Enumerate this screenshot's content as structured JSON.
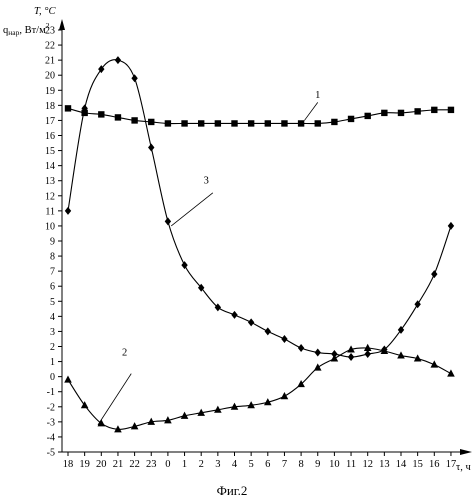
{
  "chart_data": {
    "type": "line",
    "ylabel_temperature": "T, °C",
    "ylabel_flux_main": "q",
    "ylabel_flux_sub": "нар",
    "ylabel_flux_unit": ", Вт/м",
    "ylabel_flux_sup": "2",
    "xlabel": "τ, ч",
    "caption": "Фиг.2",
    "ylim": [
      -5,
      23
    ],
    "y_ticks": [
      "-5",
      "-4",
      "-3",
      "-2",
      "-1",
      "0",
      "1",
      "2",
      "3",
      "4",
      "5",
      "6",
      "7",
      "8",
      "9",
      "10",
      "11",
      "12",
      "13",
      "14",
      "15",
      "16",
      "17",
      "18",
      "19",
      "20",
      "21",
      "22",
      "23"
    ],
    "x_ticks": [
      "18",
      "19",
      "20",
      "21",
      "22",
      "23",
      "0",
      "1",
      "2",
      "3",
      "4",
      "5",
      "6",
      "7",
      "8",
      "9",
      "10",
      "11",
      "12",
      "13",
      "14",
      "15",
      "16",
      "17"
    ],
    "grid": false,
    "series": [
      {
        "name": "1",
        "marker": "square",
        "points": [
          [
            0.0,
            17.8
          ],
          [
            1.0,
            17.5
          ],
          [
            2.0,
            17.4
          ],
          [
            3.0,
            17.2
          ],
          [
            4.0,
            17.0
          ],
          [
            5.0,
            16.9
          ],
          [
            6.0,
            16.8
          ],
          [
            7.0,
            16.8
          ],
          [
            8.0,
            16.8
          ],
          [
            9.0,
            16.8
          ],
          [
            10.0,
            16.8
          ],
          [
            11.0,
            16.8
          ],
          [
            12.0,
            16.8
          ],
          [
            13.0,
            16.8
          ],
          [
            14.0,
            16.8
          ],
          [
            15.0,
            16.8
          ],
          [
            16.0,
            16.9
          ],
          [
            17.0,
            17.1
          ],
          [
            18.0,
            17.3
          ],
          [
            19.0,
            17.5
          ],
          [
            20.0,
            17.5
          ],
          [
            21.0,
            17.6
          ],
          [
            22.0,
            17.7
          ],
          [
            23.0,
            17.7
          ]
        ]
      },
      {
        "name": "2",
        "marker": "triangle",
        "points": [
          [
            0.0,
            -0.2
          ],
          [
            1.0,
            -1.9
          ],
          [
            2.0,
            -3.1
          ],
          [
            3.0,
            -3.5
          ],
          [
            4.0,
            -3.3
          ],
          [
            5.0,
            -3.0
          ],
          [
            6.0,
            -2.9
          ],
          [
            7.0,
            -2.6
          ],
          [
            8.0,
            -2.4
          ],
          [
            9.0,
            -2.2
          ],
          [
            10.0,
            -2.0
          ],
          [
            11.0,
            -1.9
          ],
          [
            12.0,
            -1.7
          ],
          [
            13.0,
            -1.3
          ],
          [
            14.0,
            -0.5
          ],
          [
            15.0,
            0.6
          ],
          [
            16.0,
            1.2
          ],
          [
            17.0,
            1.8
          ],
          [
            18.0,
            1.9
          ],
          [
            19.0,
            1.7
          ],
          [
            20.0,
            1.4
          ],
          [
            21.0,
            1.2
          ],
          [
            22.0,
            0.8
          ],
          [
            23.0,
            0.2
          ]
        ]
      },
      {
        "name": "3",
        "marker": "diamond",
        "points": [
          [
            0.0,
            11.0
          ],
          [
            1.0,
            17.8
          ],
          [
            2.0,
            20.4
          ],
          [
            3.0,
            21.0
          ],
          [
            4.0,
            19.8
          ],
          [
            5.0,
            15.2
          ],
          [
            6.0,
            10.3
          ],
          [
            7.0,
            7.4
          ],
          [
            8.0,
            5.9
          ],
          [
            9.0,
            4.6
          ],
          [
            10.0,
            4.1
          ],
          [
            11.0,
            3.6
          ],
          [
            12.0,
            3.0
          ],
          [
            13.0,
            2.5
          ],
          [
            14.0,
            1.9
          ],
          [
            15.0,
            1.6
          ],
          [
            16.0,
            1.5
          ],
          [
            17.0,
            1.3
          ],
          [
            18.0,
            1.5
          ],
          [
            19.0,
            1.8
          ],
          [
            20.0,
            3.1
          ],
          [
            21.0,
            4.8
          ],
          [
            22.0,
            6.8
          ],
          [
            23.0,
            10.0
          ]
        ]
      }
    ]
  }
}
